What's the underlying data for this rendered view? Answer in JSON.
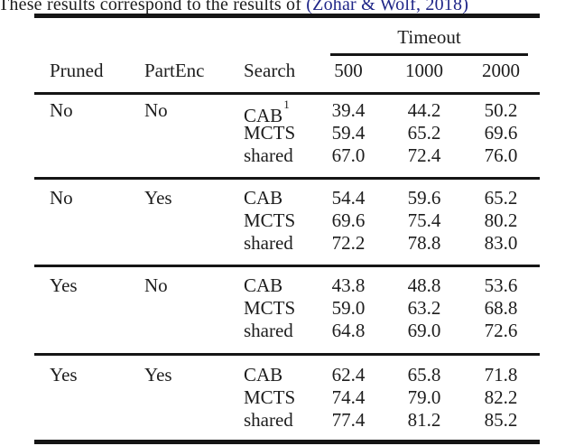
{
  "caption": {
    "prefix": "These results correspond to the results of ",
    "citation": "(Zohar & Wolf, 2018)"
  },
  "colors": {
    "text": "#1d1d1d",
    "citation_link": "#1f2688",
    "rule": "#151515"
  },
  "table": {
    "group_header": "Timeout",
    "columns": [
      "Pruned",
      "PartEnc",
      "Search"
    ],
    "timeout_columns": [
      "500",
      "1000",
      "2000"
    ],
    "blocks": [
      {
        "pruned": "No",
        "partenc": "No",
        "rows": [
          {
            "search": "CAB",
            "sup": "1",
            "values": [
              "39.4",
              "44.2",
              "50.2"
            ]
          },
          {
            "search": "MCTS",
            "sup": "",
            "values": [
              "59.4",
              "65.2",
              "69.6"
            ]
          },
          {
            "search": "shared",
            "sup": "",
            "values": [
              "67.0",
              "72.4",
              "76.0"
            ]
          }
        ]
      },
      {
        "pruned": "No",
        "partenc": "Yes",
        "rows": [
          {
            "search": "CAB",
            "sup": "",
            "values": [
              "54.4",
              "59.6",
              "65.2"
            ]
          },
          {
            "search": "MCTS",
            "sup": "",
            "values": [
              "69.6",
              "75.4",
              "80.2"
            ]
          },
          {
            "search": "shared",
            "sup": "",
            "values": [
              "72.2",
              "78.8",
              "83.0"
            ]
          }
        ]
      },
      {
        "pruned": "Yes",
        "partenc": "No",
        "rows": [
          {
            "search": "CAB",
            "sup": "",
            "values": [
              "43.8",
              "48.8",
              "53.6"
            ]
          },
          {
            "search": "MCTS",
            "sup": "",
            "values": [
              "59.0",
              "63.2",
              "68.8"
            ]
          },
          {
            "search": "shared",
            "sup": "",
            "values": [
              "64.8",
              "69.0",
              "72.6"
            ]
          }
        ]
      },
      {
        "pruned": "Yes",
        "partenc": "Yes",
        "rows": [
          {
            "search": "CAB",
            "sup": "",
            "values": [
              "62.4",
              "65.8",
              "71.8"
            ]
          },
          {
            "search": "MCTS",
            "sup": "",
            "values": [
              "74.4",
              "79.0",
              "82.2"
            ]
          },
          {
            "search": "shared",
            "sup": "",
            "values": [
              "77.4",
              "81.2",
              "85.2"
            ]
          }
        ]
      }
    ]
  }
}
